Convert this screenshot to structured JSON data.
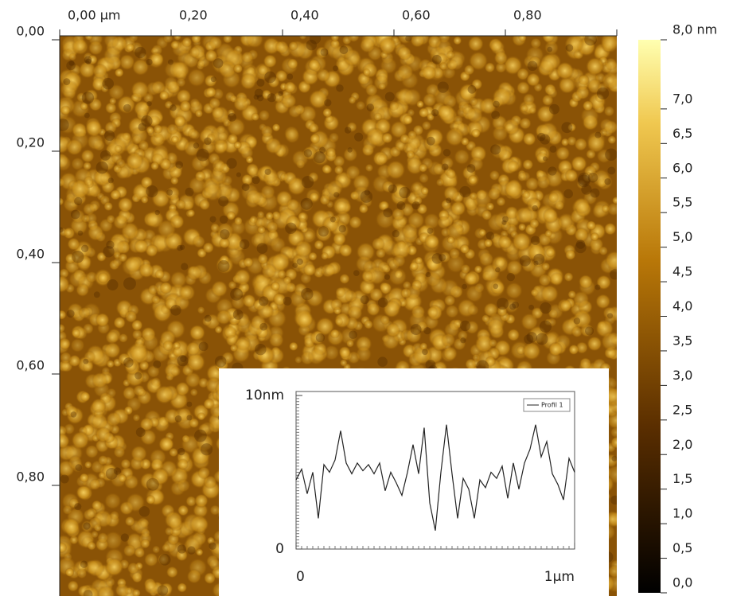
{
  "chart_data": [
    {
      "type": "image",
      "xlim": [
        0,
        1
      ],
      "xticks": [
        {
          "value": 0,
          "label": "0,00 µm"
        },
        {
          "value": 0.2,
          "label": "0,20"
        },
        {
          "value": 0.4,
          "label": "0,40"
        },
        {
          "value": 0.6,
          "label": "0,60"
        },
        {
          "value": 0.8,
          "label": "0,80"
        }
      ],
      "ylim": [
        0,
        1
      ],
      "yticks": [
        {
          "value": 0,
          "label": "0,00"
        },
        {
          "value": 0.2,
          "label": "0,20"
        },
        {
          "value": 0.4,
          "label": "0,40"
        },
        {
          "value": 0.6,
          "label": "0,60"
        },
        {
          "value": 0.8,
          "label": "0,80"
        }
      ],
      "colorbar": {
        "lim": [
          0,
          8
        ],
        "ticks": [
          {
            "value": 0,
            "label": "0,0"
          },
          {
            "value": 0.5,
            "label": "0,5"
          },
          {
            "value": 1,
            "label": "1,0"
          },
          {
            "value": 1.5,
            "label": "1,5"
          },
          {
            "value": 2,
            "label": "2,0"
          },
          {
            "value": 2.5,
            "label": "2,5"
          },
          {
            "value": 3,
            "label": "3,0"
          },
          {
            "value": 3.5,
            "label": "3,5"
          },
          {
            "value": 4,
            "label": "4,0"
          },
          {
            "value": 4.5,
            "label": "4,5"
          },
          {
            "value": 5,
            "label": "5,0"
          },
          {
            "value": 5.5,
            "label": "5,5"
          },
          {
            "value": 6,
            "label": "6,0"
          },
          {
            "value": 6.5,
            "label": "6,5"
          },
          {
            "value": 7,
            "label": "7,0"
          },
          {
            "value": 8,
            "label": "8,0 nm"
          }
        ]
      }
    },
    {
      "type": "line",
      "xlim": [
        0,
        1
      ],
      "xticks": [
        {
          "value": 0,
          "label": "0"
        },
        {
          "value": 1,
          "label": "1µm"
        }
      ],
      "ylim": [
        0,
        10
      ],
      "yticks": [
        {
          "value": 0,
          "label": "0"
        },
        {
          "value": 10,
          "label": "10nm"
        }
      ],
      "x": [
        0,
        0.02,
        0.04,
        0.06,
        0.08,
        0.1,
        0.12,
        0.14,
        0.16,
        0.18,
        0.2,
        0.22,
        0.24,
        0.26,
        0.28,
        0.3,
        0.32,
        0.34,
        0.36,
        0.38,
        0.4,
        0.42,
        0.44,
        0.46,
        0.48,
        0.5,
        0.52,
        0.54,
        0.56,
        0.58,
        0.6,
        0.62,
        0.64,
        0.66,
        0.68,
        0.7,
        0.72,
        0.74,
        0.76,
        0.78,
        0.8,
        0.82,
        0.84,
        0.86,
        0.88,
        0.9,
        0.92,
        0.94,
        0.96,
        0.98,
        1
      ],
      "series": [
        {
          "name": "Profil 1",
          "color": "#222222",
          "values": [
            4.5,
            5.2,
            3.6,
            5.0,
            2.0,
            5.5,
            5.0,
            5.8,
            7.7,
            5.6,
            4.9,
            5.6,
            5.1,
            5.5,
            4.9,
            5.6,
            3.8,
            5.0,
            4.3,
            3.5,
            5.0,
            6.8,
            4.9,
            7.9,
            3.0,
            1.2,
            5.0,
            8.1,
            4.9,
            2.0,
            4.6,
            3.9,
            2.0,
            4.5,
            4.0,
            5.0,
            4.6,
            5.4,
            3.3,
            5.6,
            3.9,
            5.6,
            6.5,
            8.1,
            6.0,
            7.0,
            4.9,
            4.2,
            3.2,
            5.9,
            5.0
          ]
        }
      ]
    }
  ]
}
